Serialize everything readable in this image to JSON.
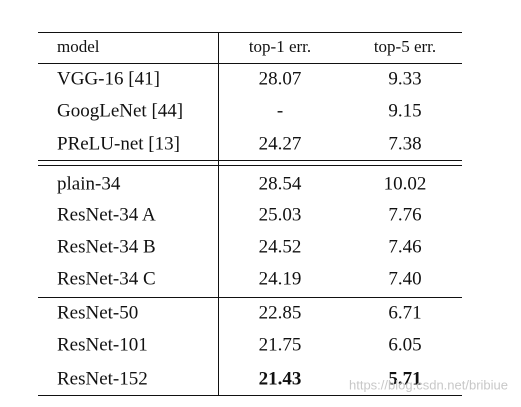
{
  "table": {
    "header": [
      "model",
      "top-1 err.",
      "top-5 err."
    ],
    "rows": [
      [
        "VGG-16 [41]",
        "28.07",
        "9.33"
      ],
      [
        "GoogLeNet [44]",
        "-",
        "9.15"
      ],
      [
        "PReLU-net [13]",
        "24.27",
        "7.38"
      ],
      [
        "plain-34",
        "28.54",
        "10.02"
      ],
      [
        "ResNet-34 A",
        "25.03",
        "7.76"
      ],
      [
        "ResNet-34 B",
        "24.52",
        "7.46"
      ],
      [
        "ResNet-34 C",
        "24.19",
        "7.40"
      ],
      [
        "ResNet-50",
        "22.85",
        "6.71"
      ],
      [
        "ResNet-101",
        "21.75",
        "6.05"
      ],
      [
        "ResNet-152",
        "21.43",
        "5.71"
      ]
    ]
  },
  "watermark": "https://blog.csdn.net/bribiue"
}
